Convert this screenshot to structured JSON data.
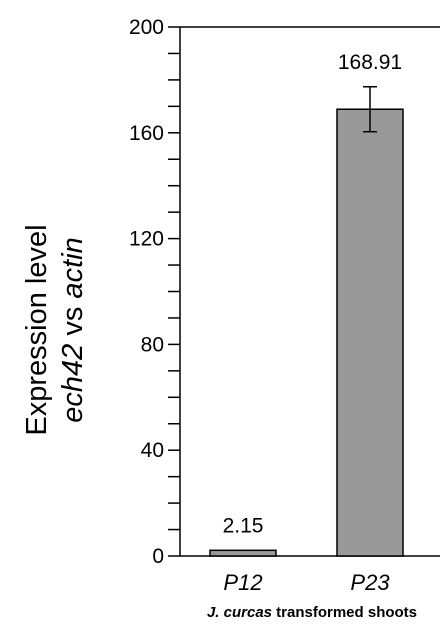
{
  "chart_data": {
    "type": "bar",
    "categories": [
      "P12",
      "P23"
    ],
    "values": [
      2.15,
      168.91
    ],
    "errors": [
      null,
      8.5
    ],
    "data_labels": [
      "2.15",
      "168.91"
    ],
    "bar_color": "#999999",
    "ylim": [
      0,
      200
    ],
    "yticks": [
      0,
      40,
      80,
      120,
      160,
      200
    ],
    "ytick_labels": [
      "0",
      "40",
      "80",
      "120",
      "160",
      "200"
    ],
    "minor_tick_step": 10,
    "ylabel_line1": "Expression level",
    "ylabel_line2": {
      "part1": "ech42",
      "part2": " vs ",
      "part3": "actin"
    },
    "xlabel": {
      "italic": "J. curcas",
      "rest": " transformed shoots"
    },
    "grid": false
  }
}
